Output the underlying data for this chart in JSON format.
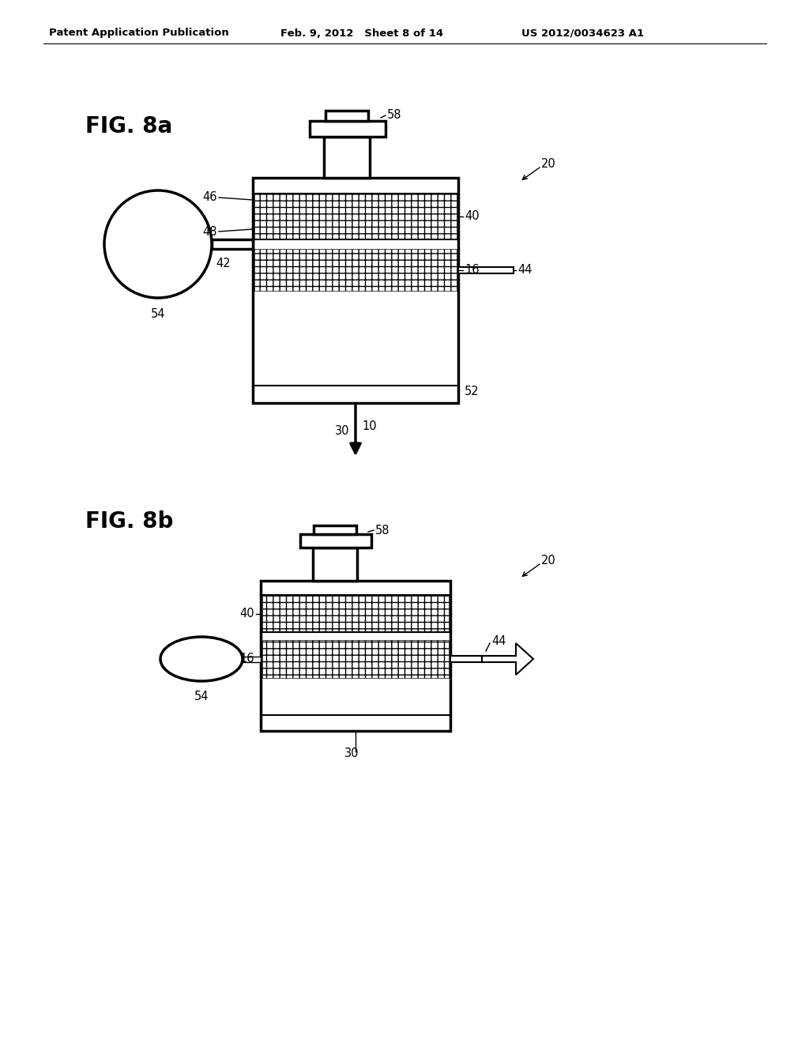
{
  "bg_color": "#ffffff",
  "header_left": "Patent Application Publication",
  "header_center": "Feb. 9, 2012   Sheet 8 of 14",
  "header_right": "US 2012/0034623 A1",
  "fig_a_label": "FIG. 8a",
  "fig_b_label": "FIG. 8b",
  "line_color": "#000000",
  "lw": 1.8,
  "lw_thin": 1.0,
  "lw_thick": 2.5,
  "lw_medium": 1.5
}
